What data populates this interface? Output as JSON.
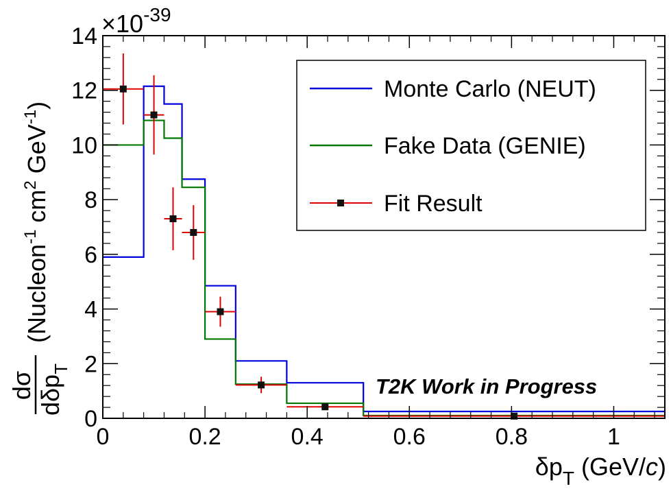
{
  "chart_data": {
    "type": "line",
    "title": "",
    "xlabel": {
      "base": "δp",
      "sub": "T",
      "unit_open": " (GeV/",
      "unit_var": "c",
      "unit_close": ")"
    },
    "ylabel": {
      "num": "dσ",
      "den_base": "dδp",
      "den_sub": "T",
      "t1": "(Nucleon",
      "sup1": "-1",
      "t2": " cm",
      "sup2": "2",
      "t3": " GeV",
      "sup3": "-1",
      "t4": ")"
    },
    "exponent": {
      "base": "×10",
      "sup": "-39"
    },
    "xlim": [
      0,
      1.1
    ],
    "ylim": [
      0,
      14
    ],
    "xticks": [
      {
        "v": 0,
        "label": "0"
      },
      {
        "v": 0.2,
        "label": "0.2"
      },
      {
        "v": 0.4,
        "label": "0.4"
      },
      {
        "v": 0.6,
        "label": "0.6"
      },
      {
        "v": 0.8,
        "label": "0.8"
      },
      {
        "v": 1.0,
        "label": "1"
      }
    ],
    "yticks": [
      {
        "v": 0,
        "label": "0"
      },
      {
        "v": 2,
        "label": "2"
      },
      {
        "v": 4,
        "label": "4"
      },
      {
        "v": 6,
        "label": "6"
      },
      {
        "v": 8,
        "label": "8"
      },
      {
        "v": 10,
        "label": "10"
      },
      {
        "v": 12,
        "label": "12"
      },
      {
        "v": 14,
        "label": "14"
      }
    ],
    "bin_edges": [
      0,
      0.08,
      0.12,
      0.155,
      0.2,
      0.26,
      0.36,
      0.51,
      1.1
    ],
    "series": [
      {
        "name": "Monte Carlo (NEUT)",
        "style": "hist",
        "color": "#0000dd",
        "values": [
          5.9,
          12.15,
          11.5,
          8.75,
          4.85,
          2.1,
          1.3,
          0.25
        ]
      },
      {
        "name": "Fake Data (GENIE)",
        "style": "hist",
        "color": "#007700",
        "values": [
          10.0,
          10.9,
          10.25,
          8.45,
          2.9,
          1.25,
          0.55,
          0.1
        ]
      },
      {
        "name": "Fit Result",
        "style": "points",
        "color": "#dd0000",
        "marker_color": "#111111",
        "points": [
          {
            "x": 0.04,
            "y": 12.05,
            "xerr": 0.04,
            "yerr": 1.3
          },
          {
            "x": 0.1,
            "y": 11.1,
            "xerr": 0.02,
            "yerr": 1.45
          },
          {
            "x": 0.1375,
            "y": 7.3,
            "xerr": 0.0175,
            "yerr": 1.15
          },
          {
            "x": 0.1775,
            "y": 6.8,
            "xerr": 0.0225,
            "yerr": 1.0
          },
          {
            "x": 0.23,
            "y": 3.9,
            "xerr": 0.03,
            "yerr": 0.55
          },
          {
            "x": 0.31,
            "y": 1.22,
            "xerr": 0.05,
            "yerr": 0.3
          },
          {
            "x": 0.435,
            "y": 0.42,
            "xerr": 0.075,
            "yerr": 0.1
          },
          {
            "x": 0.805,
            "y": 0.08,
            "xerr": 0.295,
            "yerr": 0.03
          }
        ]
      }
    ],
    "annotation": "T2K Work in Progress",
    "legend_position": "top-right",
    "grid": false
  }
}
